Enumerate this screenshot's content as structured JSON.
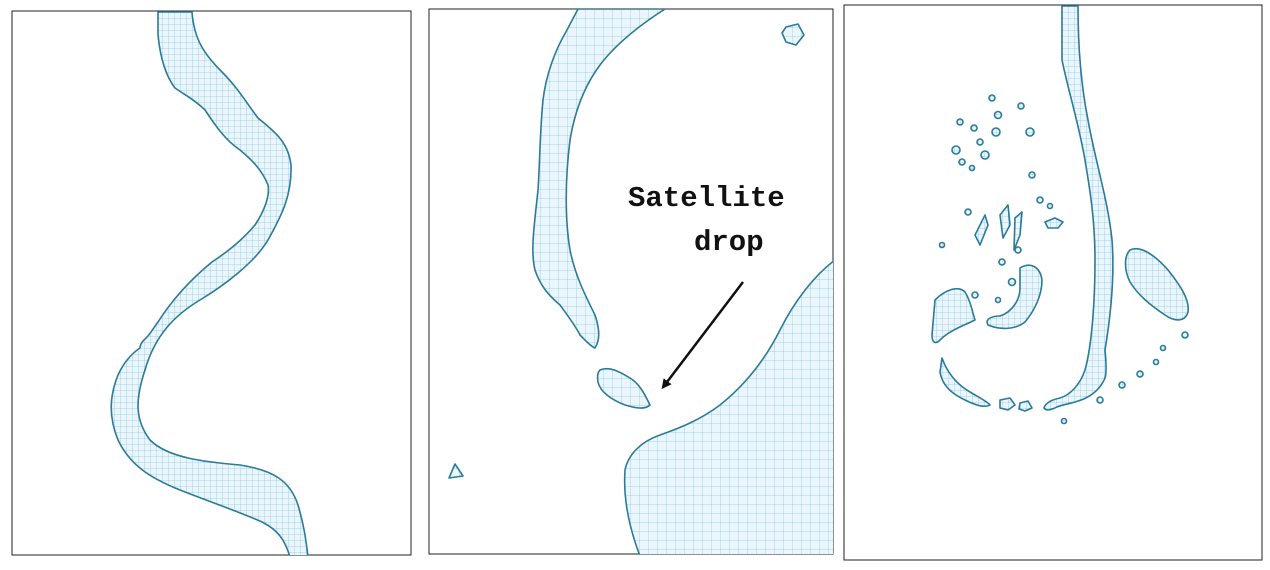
{
  "colors": {
    "outline": "#2c7a9a",
    "grid": "#8fcbe3",
    "fill": "#eaf6fb",
    "frame": "#222222",
    "text": "#111111"
  },
  "panels": [
    {
      "name": "panel-left"
    },
    {
      "name": "panel-middle",
      "annotation": {
        "line1": "Satellite",
        "line2": "drop"
      }
    },
    {
      "name": "panel-right"
    }
  ]
}
